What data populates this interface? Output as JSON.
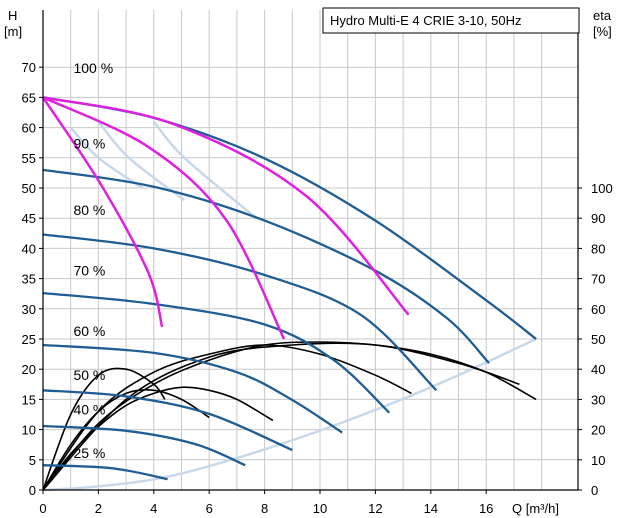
{
  "chart_data": {
    "type": "line",
    "title": "Hydro Multi-E 4 CRIE 3-10, 50Hz",
    "xlabel": "Q [m³/h]",
    "ylabel_left": [
      "H",
      "[m]"
    ],
    "ylabel_right": [
      "eta",
      "[%]"
    ],
    "xlim": [
      0,
      18.5
    ],
    "ylim_left": [
      0,
      70
    ],
    "ylim_right": [
      0,
      100
    ],
    "x_ticks": [
      0,
      2,
      4,
      6,
      8,
      10,
      12,
      14,
      16
    ],
    "y_ticks_left": [
      0,
      5,
      10,
      15,
      20,
      25,
      30,
      35,
      40,
      45,
      50,
      55,
      60,
      65,
      70
    ],
    "y_ticks_right": [
      0,
      10,
      20,
      30,
      40,
      50,
      60,
      70,
      80,
      90,
      100
    ],
    "grid": true,
    "colors": {
      "head_curve": "#1f5d93",
      "limit_curve": "#e020e0",
      "efficiency_curve": "#000000",
      "iso_curve": "#c8d8e8",
      "grid": "#c8c8c8"
    },
    "speed_labels": [
      "100 %",
      "90 %",
      "80 %",
      "70 %",
      "60 %",
      "50 %",
      "40 %",
      "25 %"
    ],
    "head_curves": [
      {
        "speed": "100 %",
        "x": [
          0,
          4,
          8,
          12,
          16,
          17.8
        ],
        "y": [
          65,
          61.6,
          54.9,
          44.6,
          31.4,
          25
        ]
      },
      {
        "speed": "90 %",
        "x": [
          0,
          4,
          8,
          12,
          14.6,
          16.1
        ],
        "y": [
          53,
          50.2,
          44.6,
          36.3,
          28.4,
          21
        ]
      },
      {
        "speed": "80 %",
        "x": [
          0,
          4,
          8,
          11.5,
          14.2
        ],
        "y": [
          42.3,
          40,
          35.6,
          28.9,
          16.5
        ]
      },
      {
        "speed": "70 %",
        "x": [
          0,
          4,
          8,
          10.5,
          12.5
        ],
        "y": [
          32.6,
          30.8,
          27.4,
          21.5,
          12.8
        ]
      },
      {
        "speed": "60 %",
        "x": [
          0,
          4,
          7,
          9,
          10.8
        ],
        "y": [
          24,
          22.7,
          19.5,
          14.9,
          9.5
        ]
      },
      {
        "speed": "50 %",
        "x": [
          0,
          3,
          6,
          9
        ],
        "y": [
          16.5,
          15.5,
          12.6,
          6.6
        ]
      },
      {
        "speed": "40 %",
        "x": [
          0,
          3,
          5.5,
          7.3
        ],
        "y": [
          10.6,
          9.8,
          7.6,
          4.1
        ]
      },
      {
        "speed": "25 %",
        "x": [
          0,
          2.5,
          4.5
        ],
        "y": [
          4.1,
          3.6,
          1.8
        ]
      }
    ],
    "limit_curves": [
      {
        "x": [
          0,
          2.1,
          3.8,
          4.3
        ],
        "y": [
          65,
          50.5,
          36,
          27
        ]
      },
      {
        "x": [
          0,
          3.8,
          6.6,
          8.7
        ],
        "y": [
          65,
          56.8,
          44.8,
          25
        ]
      },
      {
        "x": [
          0,
          4.7,
          9.5,
          13.2
        ],
        "y": [
          65,
          60.6,
          48.7,
          29
        ]
      }
    ],
    "efficiency_curves": [
      {
        "x": [
          0,
          1,
          2,
          3,
          4,
          4.4
        ],
        "y": [
          0,
          25,
          38,
          40,
          35,
          30
        ]
      },
      {
        "x": [
          0,
          1,
          2,
          3,
          4,
          5,
          6
        ],
        "y": [
          0,
          15,
          26,
          32,
          33,
          30,
          24
        ]
      },
      {
        "x": [
          0,
          1,
          2,
          3,
          4,
          5,
          6,
          7,
          8.3
        ],
        "y": [
          0,
          12,
          21,
          28,
          32,
          34,
          33,
          30,
          23
        ]
      },
      {
        "x": [
          0,
          2,
          4,
          6,
          8,
          10,
          12,
          13.3
        ],
        "y": [
          0,
          26,
          39,
          45,
          48,
          45,
          38,
          32
        ]
      },
      {
        "x": [
          0,
          2,
          4,
          6,
          8,
          10,
          12,
          14,
          16,
          17.8
        ],
        "y": [
          0,
          22,
          35,
          43,
          48,
          49,
          48,
          45,
          39,
          30
        ]
      },
      {
        "x": [
          0,
          3,
          6,
          9,
          12,
          15,
          17.2
        ],
        "y": [
          0,
          30,
          44,
          48,
          48,
          42,
          35
        ]
      }
    ]
  }
}
